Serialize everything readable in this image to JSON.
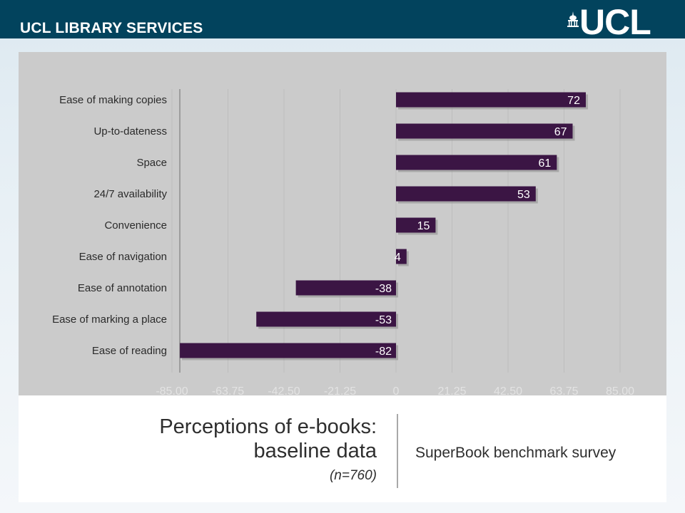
{
  "header": {
    "brand": "UCL LIBRARY SERVICES",
    "logo_text": "UCL",
    "bar_color": "#02435d"
  },
  "chart_data": {
    "type": "bar",
    "orientation": "horizontal",
    "categories": [
      "Ease of making copies",
      "Up-to-dateness",
      "Space",
      "24/7 availability",
      "Convenience",
      "Ease of navigation",
      "Ease of annotation",
      "Ease of marking a place",
      "Ease of reading"
    ],
    "values": [
      72,
      67,
      61,
      53,
      15,
      4,
      -38,
      -53,
      -82
    ],
    "value_labels": [
      "72",
      "67",
      "61",
      "53",
      "15",
      "4",
      "-38",
      "-53",
      "-82"
    ],
    "xlim": [
      -85,
      85
    ],
    "x_ticks": [
      "-85.00",
      "-63.75",
      "-42.50",
      "-21.25",
      "0",
      "21.25",
      "42.50",
      "63.75",
      "85.00"
    ],
    "grid": true,
    "bar_color": "#3b1544",
    "background_color": "#cbcbcb"
  },
  "caption": {
    "title_line1": "Perceptions of e-books:",
    "title_line2": "baseline data",
    "sample": "(n=760)",
    "source": "SuperBook benchmark survey"
  }
}
